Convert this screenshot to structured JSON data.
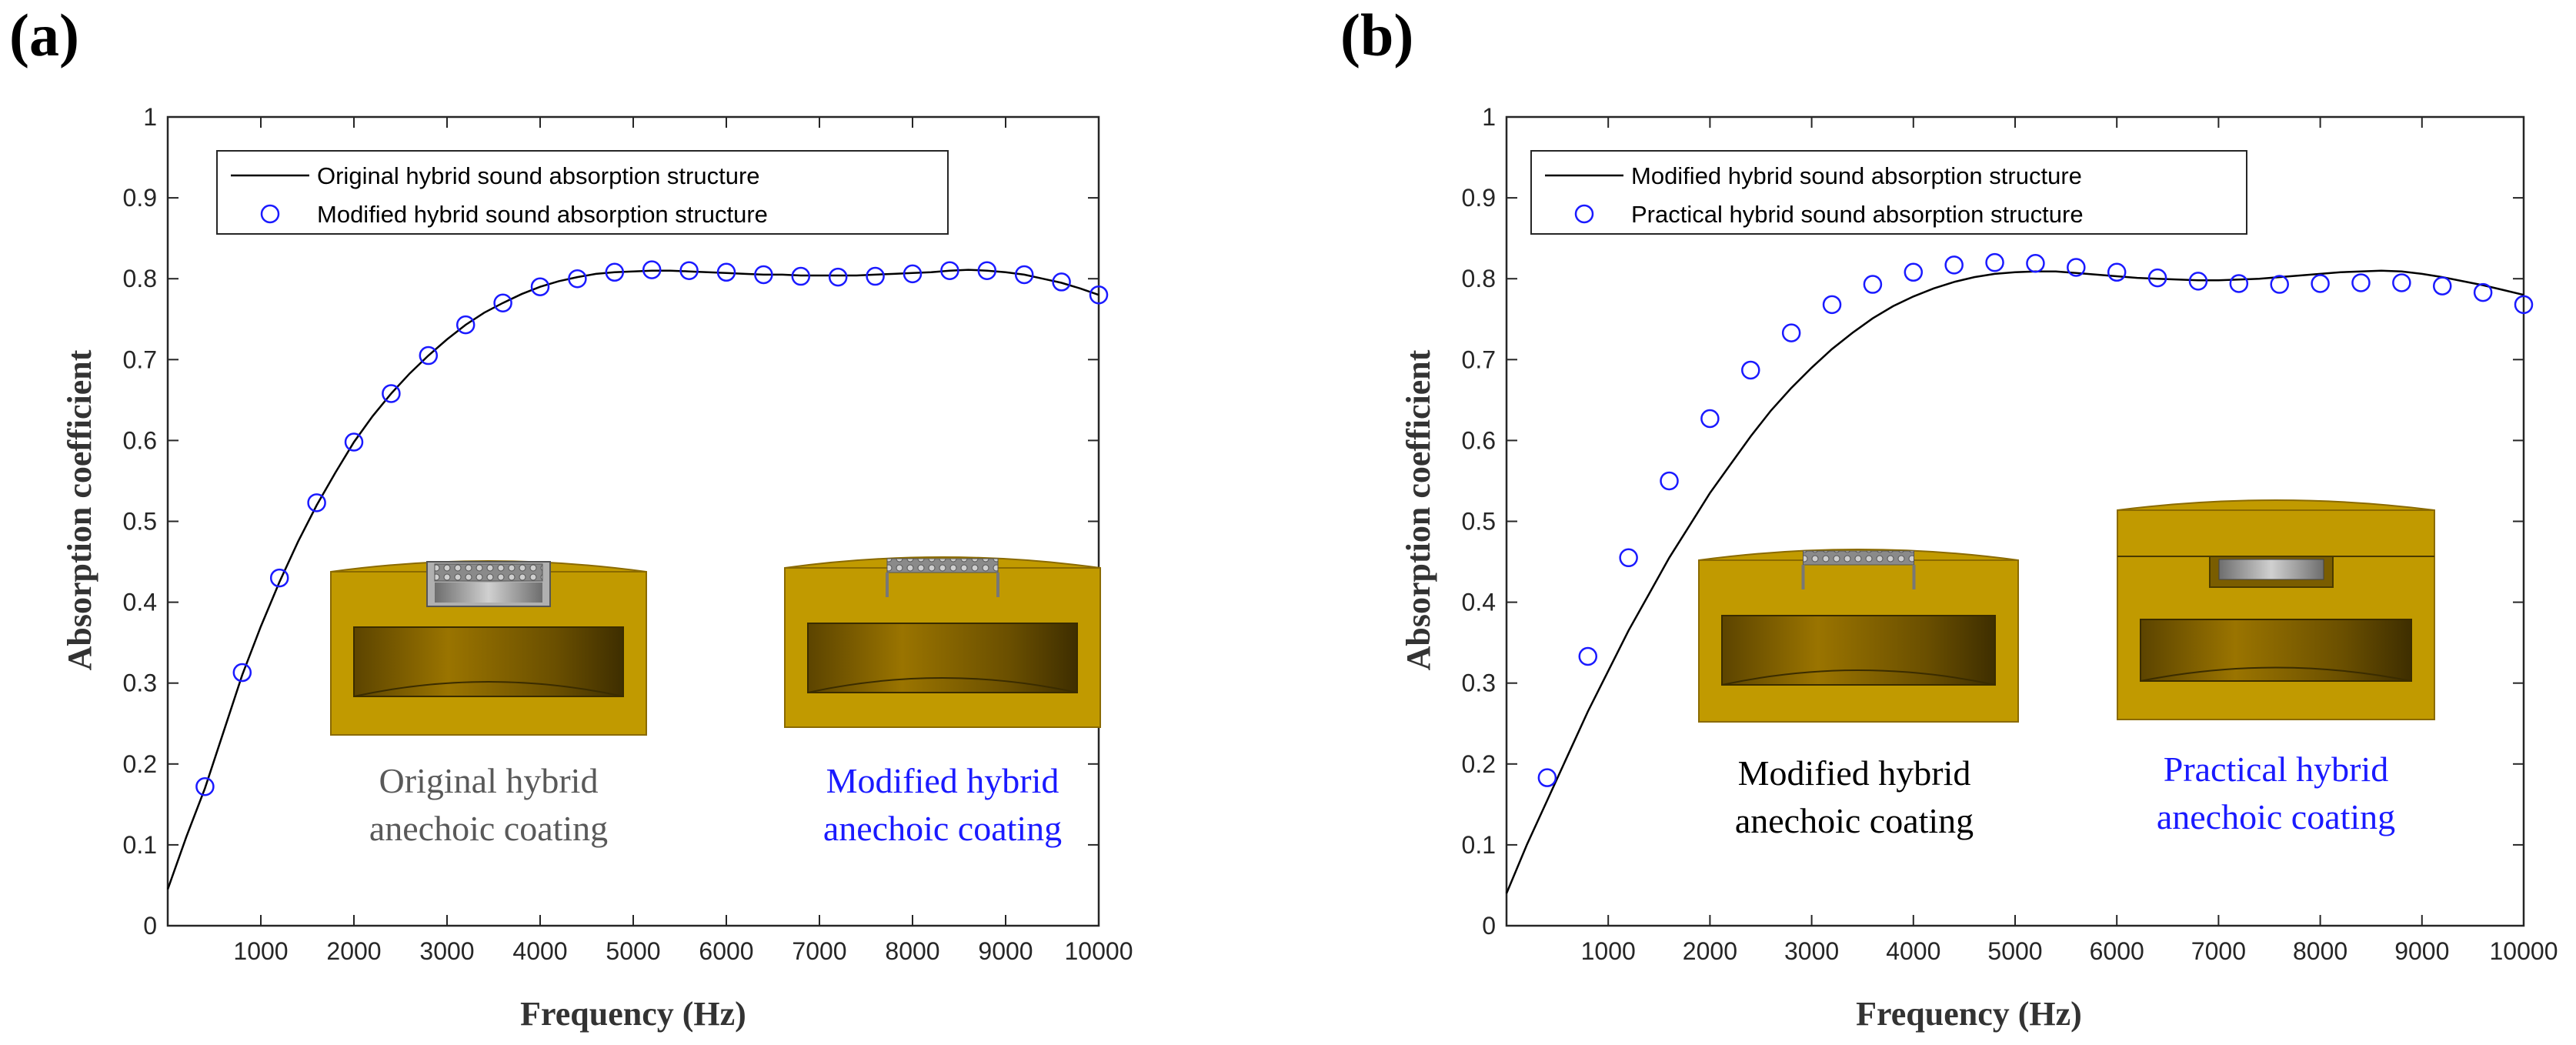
{
  "figure": {
    "panels": [
      {
        "panel_label": "(a)",
        "insets": [
          {
            "caption_lines": [
              "Original hybrid",
              "anechoic coating"
            ],
            "color": "#595959"
          },
          {
            "caption_lines": [
              "Modified hybrid",
              "anechoic coating"
            ],
            "color": "#1a1aff"
          }
        ]
      },
      {
        "panel_label": "(b)",
        "insets": [
          {
            "caption_lines": [
              "Modified hybrid",
              "anechoic coating"
            ],
            "color": "#000000"
          },
          {
            "caption_lines": [
              "Practical hybrid",
              "anechoic coating"
            ],
            "color": "#1a1aff"
          }
        ]
      }
    ]
  },
  "chart_data": [
    {
      "type": "line",
      "title": "",
      "xlabel": "Frequency (Hz)",
      "ylabel": "Absorption coefficient",
      "xlim": [
        0,
        10000
      ],
      "ylim": [
        0,
        1
      ],
      "xticks": [
        "1000",
        "2000",
        "3000",
        "4000",
        "5000",
        "6000",
        "7000",
        "8000",
        "9000",
        "10000"
      ],
      "yticks": [
        "0",
        "0.1",
        "0.2",
        "0.3",
        "0.4",
        "0.5",
        "0.6",
        "0.7",
        "0.8",
        "0.9",
        "1"
      ],
      "legend_position": "top-left",
      "series": [
        {
          "name": "Original hybrid sound absorption structure",
          "style": "line",
          "color": "#000000",
          "x": [
            0,
            200,
            400,
            600,
            800,
            1000,
            1200,
            1400,
            1600,
            1800,
            2000,
            2200,
            2400,
            2600,
            2800,
            3000,
            3200,
            3400,
            3600,
            3800,
            4000,
            4200,
            4400,
            4600,
            4800,
            5000,
            5200,
            5400,
            5600,
            5800,
            6000,
            6200,
            6400,
            6600,
            6800,
            7000,
            7200,
            7400,
            7600,
            7800,
            8000,
            8200,
            8400,
            8600,
            8800,
            9000,
            9200,
            9400,
            9600,
            9800,
            10000
          ],
          "y": [
            0.045,
            0.11,
            0.17,
            0.24,
            0.31,
            0.37,
            0.425,
            0.475,
            0.52,
            0.56,
            0.598,
            0.63,
            0.658,
            0.683,
            0.705,
            0.725,
            0.743,
            0.758,
            0.77,
            0.781,
            0.79,
            0.797,
            0.802,
            0.806,
            0.808,
            0.809,
            0.81,
            0.81,
            0.809,
            0.808,
            0.807,
            0.806,
            0.805,
            0.805,
            0.804,
            0.804,
            0.804,
            0.804,
            0.805,
            0.806,
            0.807,
            0.808,
            0.81,
            0.811,
            0.81,
            0.808,
            0.805,
            0.8,
            0.795,
            0.788,
            0.78
          ]
        },
        {
          "name": "Modified hybrid sound absorption structure",
          "style": "markers",
          "color": "#1a1aff",
          "x": [
            400,
            800,
            1200,
            1600,
            2000,
            2400,
            2800,
            3200,
            3600,
            4000,
            4400,
            4800,
            5200,
            5600,
            6000,
            6400,
            6800,
            7200,
            7600,
            8000,
            8400,
            8800,
            9200,
            9600,
            10000
          ],
          "y": [
            0.172,
            0.313,
            0.43,
            0.523,
            0.598,
            0.658,
            0.705,
            0.743,
            0.77,
            0.79,
            0.8,
            0.808,
            0.811,
            0.81,
            0.808,
            0.805,
            0.803,
            0.802,
            0.803,
            0.806,
            0.81,
            0.81,
            0.805,
            0.796,
            0.78
          ]
        }
      ]
    },
    {
      "type": "line",
      "title": "",
      "xlabel": "Frequency (Hz)",
      "ylabel": "Absorption coefficient",
      "xlim": [
        0,
        10000
      ],
      "ylim": [
        0,
        1
      ],
      "xticks": [
        "1000",
        "2000",
        "3000",
        "4000",
        "5000",
        "6000",
        "7000",
        "8000",
        "9000",
        "10000"
      ],
      "yticks": [
        "0",
        "0.1",
        "0.2",
        "0.3",
        "0.4",
        "0.5",
        "0.6",
        "0.7",
        "0.8",
        "0.9",
        "1"
      ],
      "legend_position": "top-left",
      "series": [
        {
          "name": "Modified hybrid sound absorption structure",
          "style": "line",
          "color": "#000000",
          "x": [
            0,
            200,
            400,
            600,
            800,
            1000,
            1200,
            1400,
            1600,
            1800,
            2000,
            2200,
            2400,
            2600,
            2800,
            3000,
            3200,
            3400,
            3600,
            3800,
            4000,
            4200,
            4400,
            4600,
            4800,
            5000,
            5200,
            5400,
            5600,
            5800,
            6000,
            6200,
            6400,
            6600,
            6800,
            7000,
            7200,
            7400,
            7600,
            7800,
            8000,
            8200,
            8400,
            8600,
            8800,
            9000,
            9200,
            9400,
            9600,
            9800,
            10000
          ],
          "y": [
            0.04,
            0.1,
            0.155,
            0.21,
            0.265,
            0.315,
            0.365,
            0.41,
            0.455,
            0.495,
            0.535,
            0.57,
            0.605,
            0.637,
            0.665,
            0.69,
            0.713,
            0.733,
            0.751,
            0.766,
            0.778,
            0.788,
            0.796,
            0.802,
            0.806,
            0.808,
            0.809,
            0.809,
            0.807,
            0.805,
            0.803,
            0.801,
            0.8,
            0.799,
            0.798,
            0.798,
            0.799,
            0.8,
            0.802,
            0.804,
            0.806,
            0.808,
            0.809,
            0.81,
            0.809,
            0.806,
            0.802,
            0.797,
            0.792,
            0.786,
            0.78
          ]
        },
        {
          "name": "Practical hybrid sound absorption structure",
          "style": "markers",
          "color": "#1a1aff",
          "x": [
            400,
            800,
            1200,
            1600,
            2000,
            2400,
            2800,
            3200,
            3600,
            4000,
            4400,
            4800,
            5200,
            5600,
            6000,
            6400,
            6800,
            7200,
            7600,
            8000,
            8400,
            8800,
            9200,
            9600,
            10000
          ],
          "y": [
            0.183,
            0.333,
            0.455,
            0.55,
            0.627,
            0.687,
            0.733,
            0.768,
            0.793,
            0.808,
            0.817,
            0.82,
            0.819,
            0.814,
            0.808,
            0.801,
            0.797,
            0.794,
            0.793,
            0.794,
            0.795,
            0.795,
            0.791,
            0.783,
            0.768
          ]
        }
      ]
    }
  ]
}
